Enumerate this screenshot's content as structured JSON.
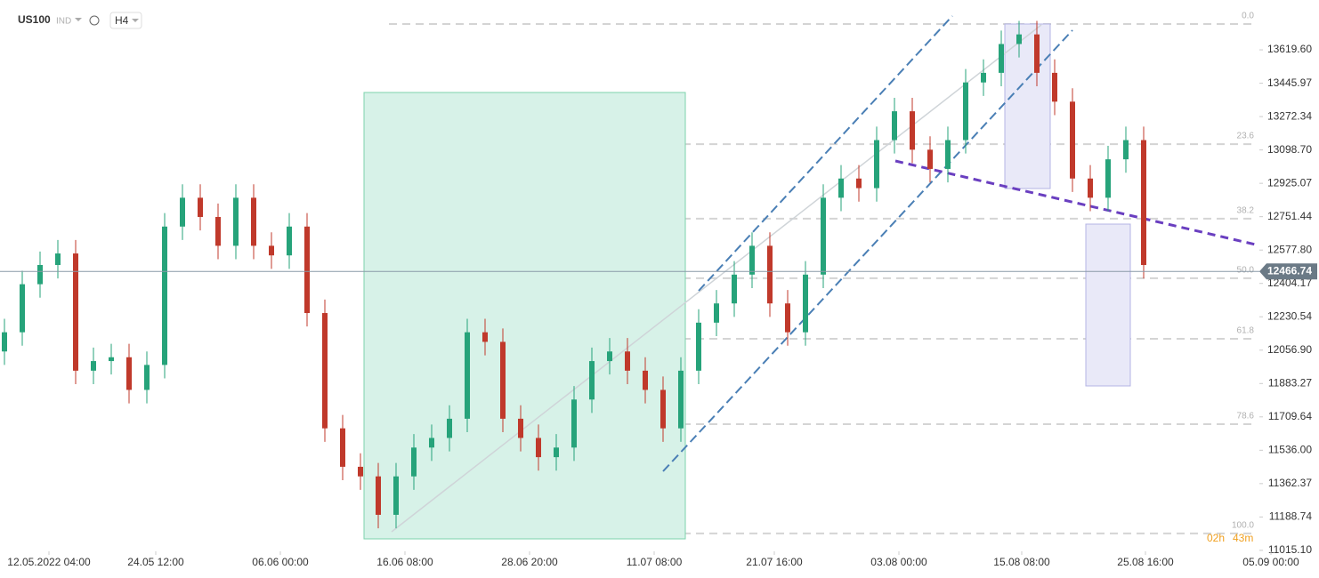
{
  "header": {
    "symbol": "US100",
    "market": "IND",
    "interval": "H4",
    "countdown_hours": "02h",
    "countdown_minutes": "43m"
  },
  "chart_data": {
    "type": "candlestick",
    "up_color": "#26a37a",
    "down_color": "#c0392b",
    "candles": [
      [
        12050,
        12220,
        11980,
        12150
      ],
      [
        12150,
        12470,
        12080,
        12400
      ],
      [
        12400,
        12570,
        12330,
        12500
      ],
      [
        12500,
        12630,
        12430,
        12560
      ],
      [
        12560,
        12630,
        11880,
        11950
      ],
      [
        11950,
        12070,
        11880,
        12000
      ],
      [
        12000,
        12090,
        11930,
        12020
      ],
      [
        12020,
        12090,
        11780,
        11850
      ],
      [
        11850,
        12050,
        11780,
        11980
      ],
      [
        11980,
        12770,
        11910,
        12700
      ],
      [
        12700,
        12920,
        12630,
        12850
      ],
      [
        12850,
        12920,
        12680,
        12750
      ],
      [
        12750,
        12820,
        12530,
        12600
      ],
      [
        12600,
        12920,
        12530,
        12850
      ],
      [
        12850,
        12920,
        12530,
        12600
      ],
      [
        12600,
        12670,
        12480,
        12550
      ],
      [
        12550,
        12770,
        12480,
        12700
      ],
      [
        12700,
        12770,
        12180,
        12250
      ],
      [
        12250,
        12320,
        11580,
        11650
      ],
      [
        11650,
        11720,
        11380,
        11450
      ],
      [
        11450,
        11520,
        11330,
        11400
      ],
      [
        11400,
        11470,
        11130,
        11200
      ],
      [
        11200,
        11470,
        11130,
        11400
      ],
      [
        11400,
        11620,
        11330,
        11550
      ],
      [
        11550,
        11670,
        11480,
        11600
      ],
      [
        11600,
        11770,
        11530,
        11700
      ],
      [
        11700,
        12220,
        11630,
        12150
      ],
      [
        12150,
        12220,
        12030,
        12100
      ],
      [
        12100,
        12170,
        11630,
        11700
      ],
      [
        11700,
        11770,
        11530,
        11600
      ],
      [
        11600,
        11670,
        11430,
        11500
      ],
      [
        11500,
        11620,
        11430,
        11550
      ],
      [
        11550,
        11870,
        11480,
        11800
      ],
      [
        11800,
        12070,
        11730,
        12000
      ],
      [
        12000,
        12120,
        11930,
        12050
      ],
      [
        12050,
        12120,
        11880,
        11950
      ],
      [
        11950,
        12020,
        11780,
        11850
      ],
      [
        11850,
        11920,
        11580,
        11650
      ],
      [
        11650,
        12020,
        11580,
        11950
      ],
      [
        11950,
        12270,
        11880,
        12200
      ],
      [
        12200,
        12370,
        12130,
        12300
      ],
      [
        12300,
        12520,
        12230,
        12450
      ],
      [
        12450,
        12670,
        12380,
        12600
      ],
      [
        12600,
        12670,
        12230,
        12300
      ],
      [
        12300,
        12370,
        12080,
        12150
      ],
      [
        12150,
        12520,
        12080,
        12450
      ],
      [
        12450,
        12920,
        12380,
        12850
      ],
      [
        12850,
        13020,
        12780,
        12950
      ],
      [
        12950,
        13020,
        12830,
        12900
      ],
      [
        12900,
        13220,
        12830,
        13150
      ],
      [
        13150,
        13370,
        13080,
        13300
      ],
      [
        13300,
        13370,
        13030,
        13100
      ],
      [
        13100,
        13170,
        12930,
        13000
      ],
      [
        13000,
        13220,
        12930,
        13150
      ],
      [
        13150,
        13520,
        13080,
        13450
      ],
      [
        13450,
        13570,
        13380,
        13500
      ],
      [
        13500,
        13720,
        13430,
        13650
      ],
      [
        13650,
        13770,
        13580,
        13700
      ],
      [
        13700,
        13770,
        13430,
        13500
      ],
      [
        13500,
        13570,
        13280,
        13350
      ],
      [
        13350,
        13420,
        12880,
        12950
      ],
      [
        12950,
        13020,
        12780,
        12850
      ],
      [
        12850,
        13120,
        12780,
        13050
      ],
      [
        13050,
        13220,
        12980,
        13150
      ],
      [
        13150,
        13220,
        12430,
        12500
      ]
    ],
    "xlim": [
      -0.25,
      70.5
    ],
    "xticks": [
      {
        "value": 2.5,
        "label": "12.05.2022  04:00"
      },
      {
        "value": 8.5,
        "label": "24.05  12:00"
      },
      {
        "value": 15.5,
        "label": "06.06  00:00"
      },
      {
        "value": 22.5,
        "label": "16.06  08:00"
      },
      {
        "value": 29.5,
        "label": "28.06  20:00"
      },
      {
        "value": 36.5,
        "label": "11.07  08:00"
      },
      {
        "value": 43.25,
        "label": "21.07  16:00"
      },
      {
        "value": 50.25,
        "label": "03.08  00:00"
      },
      {
        "value": 57.15,
        "label": "15.08  08:00"
      },
      {
        "value": 64.1,
        "label": "25.08  16:00"
      },
      {
        "value": 71.15,
        "label": "05.09  00:00"
      }
    ],
    "ylim": [
      11010,
      13879
    ],
    "yticks": [
      {
        "value": 13619.6,
        "label": "13619.60"
      },
      13445.97,
      13272.34,
      {
        "value": 13098.7,
        "label": "13098.70"
      },
      12925.07,
      12751.44,
      {
        "value": 12577.8,
        "label": "12577.80"
      },
      12404.17,
      12230.54,
      {
        "value": 12056.9,
        "label": "12056.90"
      },
      11883.27,
      11709.64,
      {
        "value": 11536,
        "label": "11536.00"
      },
      11362.37,
      11188.74,
      {
        "value": 11015.1,
        "label": "11015.10"
      }
    ],
    "last_price": 12466.74,
    "fib_levels": [
      {
        "label": "0.0",
        "price": 13754
      },
      {
        "label": "23.6",
        "price": 13129
      },
      {
        "label": "38.2",
        "price": 12741
      },
      {
        "label": "50.0",
        "price": 12431
      },
      {
        "label": "61.8",
        "price": 12116
      },
      {
        "label": "78.6",
        "price": 11672
      },
      {
        "label": "100.0",
        "price": 11103
      }
    ]
  }
}
